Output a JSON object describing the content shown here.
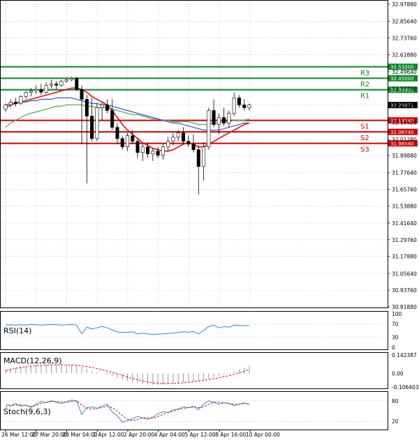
{
  "colors": {
    "background": "#ffffff",
    "grid": "#c8c8c8",
    "bull": "#0a8a24",
    "bear": "#cc0000",
    "resistance": "#0a8a24",
    "support": "#d00000",
    "ma_red": "#e01010",
    "ma_blue": "#3a52d8",
    "ma_green": "#5aa85a",
    "rsi": "#2f86d8",
    "macd_hist": "#9a9a9a",
    "macd_signal": "#d81010",
    "stoch_main": "#2f86d8",
    "stoch_signal": "#d81010",
    "current_price_tag": "#000000"
  },
  "chart_data": [
    {
      "type": "candlestick",
      "y_ticks": [
        "32.97880",
        "32.85640",
        "32.73760",
        "32.61880",
        "32.49640",
        "32.37760",
        "32.25871",
        "32.13520",
        "32.01280",
        "31.89880",
        "31.77640",
        "31.65760",
        "31.53880",
        "31.41640",
        "31.29760",
        "31.17880",
        "31.05640",
        "30.93760",
        "30.81880"
      ],
      "ylim": [
        30.8188,
        32.9788
      ],
      "current_price": "32.25871",
      "levels": [
        {
          "name": "R3",
          "value": 32.532,
          "label": "32.53200",
          "kind": "resistance"
        },
        {
          "name": "R2",
          "value": 32.45,
          "label": "32.45000",
          "kind": "resistance"
        },
        {
          "name": "R1",
          "value": 32.368,
          "label": "32.36800",
          "kind": "resistance"
        },
        {
          "name": "S1",
          "value": 32.1494,
          "label": "32.14940",
          "kind": "support"
        },
        {
          "name": "S2",
          "value": 32.0674,
          "label": "32.06740",
          "kind": "support"
        },
        {
          "name": "S3",
          "value": 31.9854,
          "label": "31.98540",
          "kind": "support"
        }
      ],
      "x_labels": [
        "26 Mar 12:00",
        "27 Mar 20:00",
        "29 Mar 04:00",
        "1 Apr 12:00",
        "2 Apr 20:00",
        "4 Apr 04:00",
        "5 Apr 12:00",
        "8 Apr 16:00",
        "10 Apr 00:00"
      ],
      "candles": [
        [
          32.23,
          32.27,
          32.21,
          32.26
        ],
        [
          32.26,
          32.3,
          32.24,
          32.28
        ],
        [
          32.28,
          32.31,
          32.25,
          32.27
        ],
        [
          32.27,
          32.33,
          32.26,
          32.32
        ],
        [
          32.32,
          32.36,
          32.3,
          32.35
        ],
        [
          32.35,
          32.38,
          32.32,
          32.36
        ],
        [
          32.36,
          32.4,
          32.34,
          32.37
        ],
        [
          32.37,
          32.41,
          32.33,
          32.35
        ],
        [
          32.35,
          32.42,
          32.34,
          32.4
        ],
        [
          32.4,
          32.44,
          32.38,
          32.41
        ],
        [
          32.41,
          32.43,
          32.37,
          32.4
        ],
        [
          32.4,
          32.44,
          32.39,
          32.43
        ],
        [
          32.43,
          32.45,
          32.42,
          32.44
        ],
        [
          32.44,
          32.46,
          32.43,
          32.45
        ],
        [
          32.45,
          32.46,
          32.36,
          32.37
        ],
        [
          32.37,
          32.4,
          31.98,
          32.3
        ],
        [
          32.3,
          32.33,
          31.7,
          32.18
        ],
        [
          32.18,
          32.31,
          32.0,
          32.02
        ],
        [
          32.02,
          32.27,
          32.0,
          32.24
        ],
        [
          32.24,
          32.28,
          32.15,
          32.26
        ],
        [
          32.26,
          32.3,
          32.2,
          32.22
        ],
        [
          32.22,
          32.3,
          32.08,
          32.1
        ],
        [
          32.1,
          32.13,
          31.98,
          32.02
        ],
        [
          32.02,
          32.04,
          31.94,
          31.96
        ],
        [
          31.96,
          32.06,
          31.93,
          32.04
        ],
        [
          32.04,
          32.08,
          31.98,
          32.0
        ],
        [
          32.0,
          32.02,
          31.88,
          31.92
        ],
        [
          31.92,
          31.98,
          31.86,
          31.96
        ],
        [
          31.96,
          31.99,
          31.88,
          31.91
        ],
        [
          31.91,
          31.95,
          31.86,
          31.93
        ],
        [
          31.93,
          31.96,
          31.88,
          31.9
        ],
        [
          31.9,
          31.98,
          31.87,
          31.96
        ],
        [
          31.96,
          32.03,
          31.93,
          32.0
        ],
        [
          32.0,
          32.06,
          31.97,
          32.03
        ],
        [
          32.03,
          32.08,
          32.0,
          32.06
        ],
        [
          32.06,
          32.1,
          31.98,
          32.0
        ],
        [
          32.0,
          32.04,
          31.96,
          31.98
        ],
        [
          31.98,
          32.05,
          31.92,
          31.94
        ],
        [
          31.94,
          31.97,
          31.62,
          31.82
        ],
        [
          31.82,
          31.99,
          31.72,
          31.96
        ],
        [
          31.96,
          32.24,
          31.94,
          32.22
        ],
        [
          32.22,
          32.3,
          32.1,
          32.12
        ],
        [
          32.12,
          32.2,
          32.05,
          32.17
        ],
        [
          32.17,
          32.24,
          32.11,
          32.13
        ],
        [
          32.13,
          32.22,
          32.1,
          32.2
        ],
        [
          32.2,
          32.35,
          32.18,
          32.31
        ],
        [
          32.31,
          32.33,
          32.24,
          32.26
        ],
        [
          32.26,
          32.3,
          32.22,
          32.24
        ],
        [
          32.24,
          32.27,
          32.22,
          32.26
        ]
      ],
      "ma_red": [
        32.24,
        32.26,
        32.27,
        32.28,
        32.29,
        32.3,
        32.31,
        32.32,
        32.33,
        32.34,
        32.35,
        32.36,
        32.37,
        32.38,
        32.38,
        32.37,
        32.35,
        32.32,
        32.3,
        32.28,
        32.26,
        32.22,
        32.17,
        32.12,
        32.08,
        32.05,
        32.02,
        31.99,
        31.97,
        31.95,
        31.94,
        31.93,
        31.93,
        31.94,
        31.96,
        31.98,
        31.99,
        31.98,
        31.96,
        31.96,
        31.98,
        32.0,
        32.02,
        32.04,
        32.06,
        32.08,
        32.1,
        32.12,
        32.13
      ],
      "ma_blue": [
        32.26,
        32.27,
        32.27,
        32.28,
        32.28,
        32.29,
        32.29,
        32.3,
        32.3,
        32.3,
        32.31,
        32.31,
        32.31,
        32.31,
        32.3,
        32.29,
        32.28,
        32.27,
        32.27,
        32.26,
        32.26,
        32.25,
        32.24,
        32.23,
        32.22,
        32.21,
        32.2,
        32.19,
        32.18,
        32.17,
        32.16,
        32.15,
        32.14,
        32.13,
        32.13,
        32.12,
        32.11,
        32.1,
        32.09,
        32.08,
        32.08,
        32.08,
        32.08,
        32.09,
        32.1,
        32.11,
        32.12,
        32.13,
        32.13
      ],
      "ma_green": [
        32.1,
        32.13,
        32.15,
        32.17,
        32.19,
        32.2,
        32.21,
        32.22,
        32.23,
        32.24,
        32.25,
        32.25,
        32.26,
        32.26,
        32.26,
        32.26,
        32.25,
        32.25,
        32.24,
        32.24,
        32.24,
        32.23,
        32.22,
        32.21,
        32.2,
        32.19,
        32.19,
        32.18,
        32.17,
        32.16,
        32.16,
        32.15,
        32.15,
        32.14,
        32.14,
        32.14,
        32.14,
        32.13,
        32.12,
        32.12,
        32.12,
        32.13,
        32.13,
        32.14,
        32.14,
        32.15,
        32.15,
        32.15,
        32.16
      ]
    },
    {
      "type": "line",
      "title": "RSI(14)",
      "y_ticks": [
        "100",
        "70",
        "30",
        "0"
      ],
      "ylim": [
        0,
        100
      ],
      "values": [
        66,
        67,
        66,
        67,
        66,
        68,
        67,
        66,
        67,
        68,
        67,
        66,
        67,
        68,
        66,
        40,
        60,
        55,
        58,
        62,
        58,
        52,
        46,
        44,
        45,
        46,
        40,
        42,
        40,
        38,
        39,
        40,
        41,
        42,
        44,
        46,
        45,
        47,
        40,
        50,
        62,
        66,
        58,
        62,
        60,
        66,
        65,
        64,
        65
      ]
    },
    {
      "type": "bar",
      "title": "MACD(12,26,9)",
      "y_ticks": [
        "0.142387",
        "0.00",
        "-0.106403"
      ],
      "ylim": [
        -0.106403,
        0.142387
      ],
      "histogram": [
        0.03,
        0.04,
        0.045,
        0.05,
        0.055,
        0.06,
        0.062,
        0.065,
        0.066,
        0.068,
        0.07,
        0.068,
        0.066,
        0.064,
        0.06,
        0.05,
        0.035,
        0.02,
        0.01,
        0.0,
        -0.01,
        -0.02,
        -0.035,
        -0.05,
        -0.06,
        -0.07,
        -0.078,
        -0.085,
        -0.088,
        -0.09,
        -0.09,
        -0.088,
        -0.085,
        -0.08,
        -0.075,
        -0.07,
        -0.065,
        -0.06,
        -0.055,
        -0.05,
        -0.04,
        -0.03,
        -0.02,
        -0.01,
        0.0,
        0.015,
        0.03,
        0.045,
        0.06
      ],
      "signal": [
        0.02,
        0.03,
        0.038,
        0.045,
        0.05,
        0.055,
        0.058,
        0.062,
        0.064,
        0.066,
        0.066,
        0.066,
        0.065,
        0.064,
        0.062,
        0.058,
        0.052,
        0.045,
        0.037,
        0.028,
        0.018,
        0.008,
        -0.004,
        -0.016,
        -0.028,
        -0.04,
        -0.05,
        -0.06,
        -0.068,
        -0.074,
        -0.078,
        -0.08,
        -0.08,
        -0.079,
        -0.077,
        -0.074,
        -0.07,
        -0.065,
        -0.06,
        -0.055,
        -0.049,
        -0.042,
        -0.035,
        -0.027,
        -0.018,
        -0.008,
        0.003,
        0.015,
        0.028
      ]
    },
    {
      "type": "line",
      "title": "Stoch(9,6,3)",
      "y_ticks": [
        "80",
        "20"
      ],
      "ylim": [
        0,
        100
      ],
      "main": [
        70,
        66,
        72,
        64,
        68,
        60,
        70,
        78,
        74,
        80,
        76,
        72,
        78,
        82,
        80,
        40,
        60,
        62,
        58,
        64,
        70,
        48,
        36,
        18,
        22,
        28,
        34,
        30,
        26,
        32,
        42,
        48,
        46,
        54,
        56,
        62,
        60,
        64,
        54,
        70,
        80,
        76,
        70,
        74,
        72,
        66,
        70,
        74,
        68
      ],
      "signal": [
        62,
        66,
        68,
        68,
        66,
        64,
        66,
        72,
        76,
        78,
        78,
        76,
        76,
        78,
        80,
        68,
        58,
        56,
        58,
        60,
        64,
        60,
        50,
        36,
        26,
        22,
        26,
        30,
        30,
        30,
        34,
        40,
        46,
        50,
        54,
        58,
        60,
        62,
        60,
        62,
        70,
        76,
        76,
        74,
        72,
        70,
        70,
        72,
        72
      ]
    }
  ]
}
